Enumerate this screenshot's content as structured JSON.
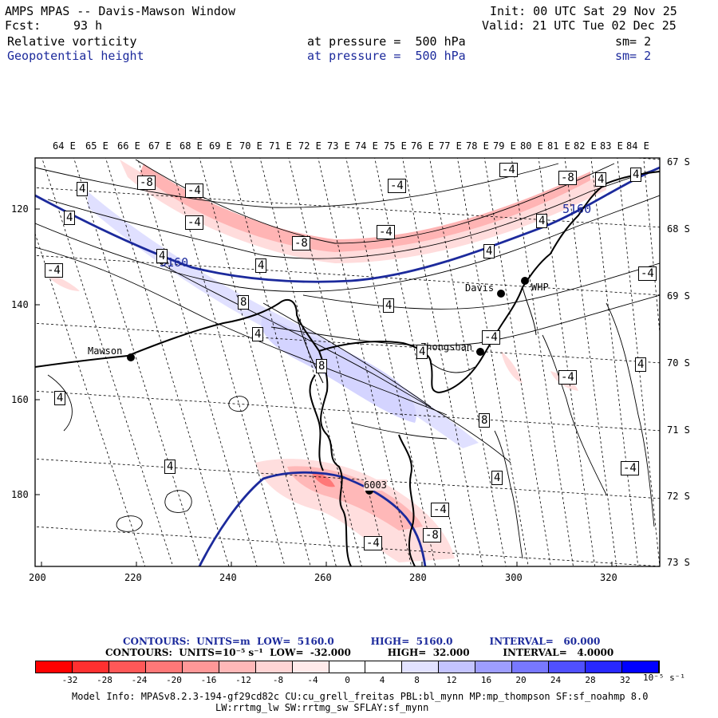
{
  "header": {
    "title": "AMPS MPAS -- Davis-Mawson Window",
    "init": "Init: 00 UTC Sat 29 Nov 25",
    "fcst_label": "Fcst:",
    "fcst_value": "93 h",
    "valid": "Valid: 21 UTC Tue 02 Dec 25",
    "field1": {
      "name": "Relative vorticity",
      "level": "at pressure =  500 hPa",
      "sm": "sm= 2"
    },
    "field2": {
      "name": "Geopotential height",
      "level": "at pressure =  500 hPa",
      "sm": "sm= 2"
    }
  },
  "map": {
    "lon_labels": [
      "64 E",
      "65 E",
      "66 E",
      "67 E",
      "68 E",
      "69 E",
      "70 E",
      "71 E",
      "72 E",
      "73 E",
      "74 E",
      "75 E",
      "76 E",
      "77 E",
      "78 E",
      "79 E",
      "80 E",
      "81 E",
      "82 E",
      "83 E",
      "84 E"
    ],
    "lat_labels": [
      "67 S",
      "68 S",
      "69 S",
      "70 S",
      "71 S",
      "72 S",
      "73 S"
    ],
    "y_ticks": [
      "120",
      "140",
      "160",
      "180"
    ],
    "x_ticks": [
      "200",
      "220",
      "240",
      "260",
      "280",
      "300",
      "320"
    ],
    "stations": [
      {
        "name": "Mawson"
      },
      {
        "name": "Davis"
      },
      {
        "name": "WHP"
      },
      {
        "name": "Zhongshan"
      },
      {
        "name": "6003"
      }
    ],
    "height_labels": [
      "5160",
      "5160"
    ],
    "vorticity_labels": [
      "-8",
      "-4",
      "-4",
      "-8",
      "-4",
      "-8",
      "4",
      "4",
      "4",
      "-4",
      "-4",
      "4",
      "8",
      "4",
      "8",
      "4",
      "4",
      "4",
      "4",
      "-4",
      "-4",
      "4",
      "8",
      "4",
      "4",
      "4",
      "-4",
      "-4",
      "-4",
      "-8",
      "4",
      "-4",
      "4",
      "-4"
    ]
  },
  "footer": {
    "contours1": "CONTOURS:  UNITS=m  LOW=  5160.0           HIGH=  5160.0           INTERVAL=   60.000",
    "contours2": "CONTOURS:  UNITS=10⁻⁵ s⁻¹  LOW=  -32.000           HIGH=  32.000          INTERVAL=   4.0000",
    "colorbar_ticks": [
      "-32",
      "-28",
      "-24",
      "-20",
      "-16",
      "-12",
      "-8",
      "-4",
      "0",
      "4",
      "8",
      "12",
      "16",
      "20",
      "24",
      "28",
      "32"
    ],
    "colorbar_units": "10⁻⁵ s⁻¹",
    "model_info1": "Model Info: MPASv8.2.3-194-gf29cd82c CU:cu_grell_freitas PBL:bl_mynn MP:mp_thompson SF:sf_noahmp 8.0",
    "model_info2": "LW:rrtmg_lw SW:rrtmg_sw SFLAY:sf_mynn"
  },
  "colors": {
    "colorbar": [
      "#ff0000",
      "#ff3030",
      "#ff5858",
      "#ff7878",
      "#ff9898",
      "#ffb8b8",
      "#ffd4d4",
      "#ffeaea",
      "#ffffff",
      "#ffffff",
      "#e2e2ff",
      "#c4c4ff",
      "#9e9eff",
      "#7878ff",
      "#5050ff",
      "#2828ff",
      "#0000ff"
    ],
    "height_contour": "#1c2a9c"
  }
}
